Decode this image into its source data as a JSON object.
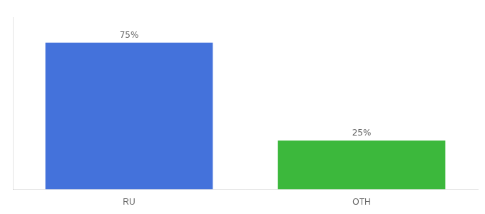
{
  "chart_data": {
    "type": "bar",
    "categories": [
      "RU",
      "OTH"
    ],
    "values": [
      75,
      25
    ],
    "colors": [
      "#4472db",
      "#3cb83c"
    ],
    "ylim": [
      0,
      88
    ],
    "data_labels": true,
    "value_labels": [
      "75%",
      "25%"
    ],
    "tick_labels": "x",
    "grid": false
  }
}
